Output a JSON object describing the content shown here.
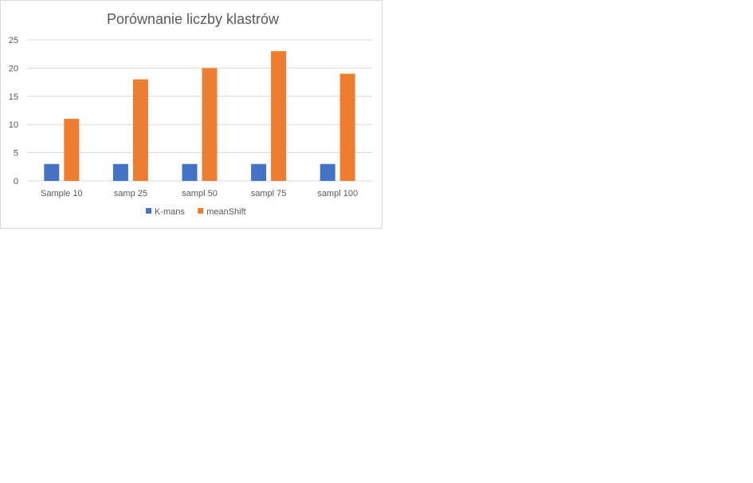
{
  "chart_data": {
    "type": "bar",
    "title": "Porównanie liczby klastrów",
    "xlabel": "",
    "ylabel": "",
    "categories": [
      "Sample 10",
      "samp 25",
      "sampl 50",
      "sampl 75",
      "sampl 100"
    ],
    "series": [
      {
        "name": "K-mans",
        "values": [
          3,
          3,
          3,
          3,
          3
        ],
        "color": "#4472c4"
      },
      {
        "name": "meanShift",
        "values": [
          11,
          18,
          20,
          23,
          19
        ],
        "color": "#ed7d31"
      }
    ],
    "ylim": [
      0,
      25
    ],
    "yticks": [
      0,
      5,
      10,
      15,
      20,
      25
    ],
    "grid": true,
    "legend_position": "bottom"
  }
}
